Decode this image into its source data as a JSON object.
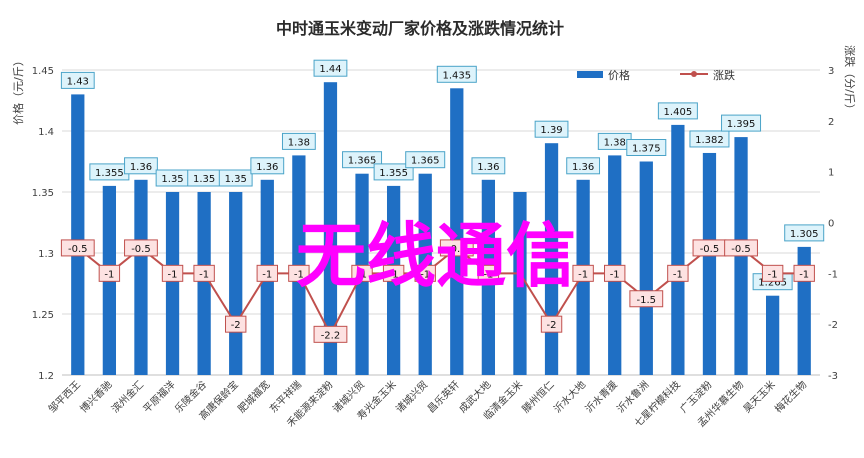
{
  "chart_data": {
    "type": "bar",
    "title": "中时通玉米变动厂家价格及涨跌情况统计",
    "ylabel_left": "价格（元/斤）",
    "ylabel_right": "涨跌（分/斤）",
    "ylim_left": [
      1.2,
      1.45
    ],
    "yticks_left": [
      "1.2",
      "1.25",
      "1.3",
      "1.35",
      "1.4",
      "1.45"
    ],
    "ylim_right": [
      -3,
      3
    ],
    "yticks_right": [
      "-3",
      "-2",
      "-1",
      "0",
      "1",
      "2",
      "3"
    ],
    "legend_position": "top-right",
    "categories": [
      "邹平西王",
      "博兴香驰",
      "滨州金汇",
      "平原福洋",
      "乐陵金谷",
      "高唐保龄宝",
      "肥城福宽",
      "东平祥瑞",
      "禾能源来淀粉",
      "诸城兴贸",
      "寿光金玉米",
      "诸城兴贸",
      "昌乐英轩",
      "成武大地",
      "临清金玉米",
      "滕州恒仁",
      "沂水大地",
      "沂水青援",
      "沂水鲁洲",
      "七星柠檬科技",
      "广玉淀粉",
      "孟州华慕生物",
      "昊天玉米",
      "梅花生物"
    ],
    "series": [
      {
        "name": "价格",
        "type": "bar",
        "color": "#1f6fc4",
        "values": [
          1.43,
          1.355,
          1.36,
          1.35,
          1.35,
          1.35,
          1.36,
          1.38,
          1.44,
          1.365,
          1.355,
          1.365,
          1.435,
          1.36,
          1.35,
          1.39,
          1.36,
          1.38,
          1.375,
          1.405,
          1.382,
          1.395,
          1.265,
          1.305
        ],
        "labels": [
          "1.43",
          "1.355",
          "1.36",
          "1.35",
          "1.35",
          "1.35",
          "1.36",
          "1.38",
          "1.44",
          "1.365",
          "1.355",
          "1.365",
          "1.435",
          "1.36",
          "",
          "1.39",
          "1.36",
          "1.38",
          "1.375",
          "1.405",
          "1.382",
          "1.395",
          "1.265",
          "1.305"
        ]
      },
      {
        "name": "涨跌",
        "type": "line",
        "color": "#c0504d",
        "values": [
          -0.5,
          -1,
          -0.5,
          -1,
          -1,
          -2,
          -1,
          -1,
          -2.2,
          -1,
          -1,
          -1,
          -0.5,
          -1,
          -1,
          -2,
          -1,
          -1,
          -1.5,
          -1,
          -0.5,
          -0.5,
          -1,
          -1
        ],
        "labels": [
          "-0.5",
          "-1",
          "-0.5",
          "-1",
          "-1",
          "-2",
          "-1",
          "-1",
          "-2.2",
          "-1",
          "-1",
          "-1",
          "-0.5",
          "-1",
          "",
          "-2",
          "-1",
          "-1",
          "-1.5",
          "-1",
          "-0.5",
          "-0.5",
          "-1",
          "-1"
        ]
      }
    ]
  },
  "overlay": {
    "watermark": "无线通信"
  }
}
